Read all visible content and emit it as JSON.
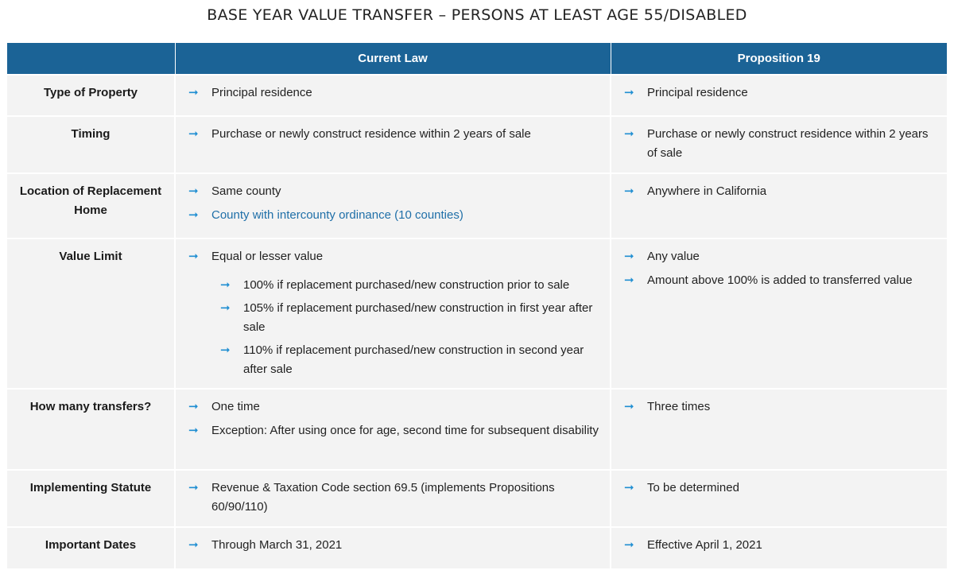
{
  "title": "BASE YEAR VALUE TRANSFER – PERSONS AT LEAST AGE 55/DISABLED",
  "table": {
    "headers": [
      "",
      "Current Law",
      "Proposition 19"
    ],
    "arrow_icon": "right-arrow-icon",
    "accent_color": "#1b6396",
    "arrow_color": "#1f8ed2",
    "rows": [
      {
        "label": "Type of Property",
        "current": [
          "Principal residence"
        ],
        "prop19": [
          "Principal residence"
        ]
      },
      {
        "label": "Timing",
        "current": [
          "Purchase or newly construct residence within 2 years of sale"
        ],
        "prop19": [
          "Purchase or newly construct residence within 2 years of sale"
        ]
      },
      {
        "label": "Location of Replacement Home",
        "current": [
          "Same county",
          "County with intercounty ordinance (10 counties)"
        ],
        "prop19": [
          "Anywhere in California"
        ]
      },
      {
        "label": "Value Limit",
        "current": [
          "Equal or lesser value"
        ],
        "current_sub": [
          "100% if replacement purchased/new construction prior to sale",
          "105% if replacement purchased/new construction in first year after sale",
          "110% if replacement purchased/new construction in second year after sale"
        ],
        "prop19": [
          "Any value",
          "Amount above 100% is added to transferred value"
        ]
      },
      {
        "label": "How many transfers?",
        "current": [
          "One time",
          "Exception:  After using once for age, second time for subsequent disability"
        ],
        "prop19": [
          "Three times"
        ]
      },
      {
        "label": "Implementing Statute",
        "current": [
          "Revenue & Taxation Code section 69.5 (implements Propositions 60/90/110)"
        ],
        "prop19": [
          "To be determined"
        ]
      },
      {
        "label": "Important Dates",
        "current": [
          "Through March 31, 2021"
        ],
        "prop19": [
          "Effective April 1, 2021"
        ]
      }
    ]
  }
}
